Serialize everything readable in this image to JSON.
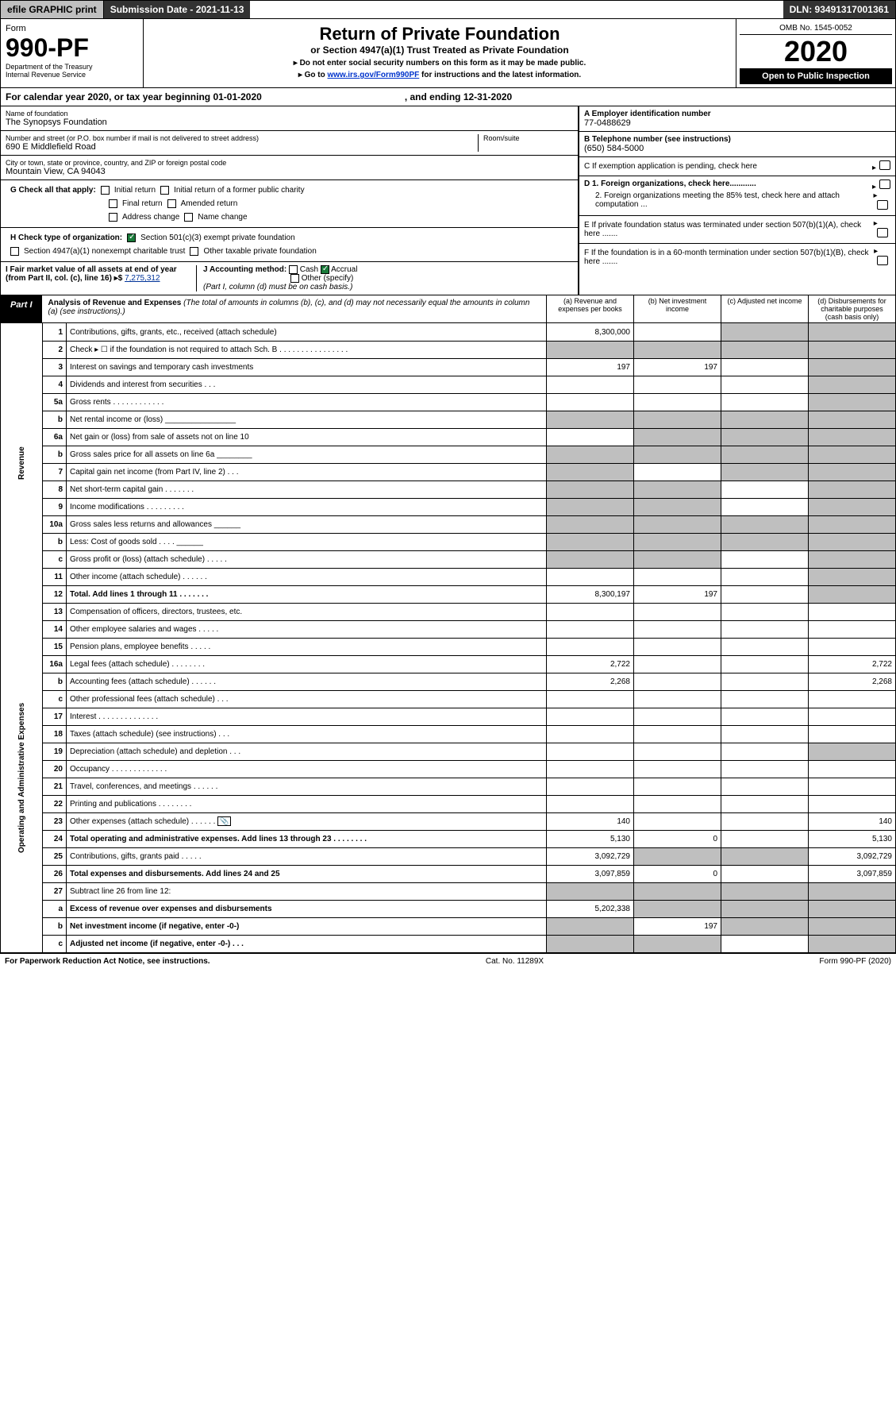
{
  "topbar": {
    "efile": "efile GRAPHIC print",
    "sub_lbl": "Submission Date - 2021-11-13",
    "dln": "DLN: 93491317001361"
  },
  "header": {
    "form": "Form",
    "num": "990-PF",
    "dept": "Department of the Treasury",
    "irs": "Internal Revenue Service",
    "title": "Return of Private Foundation",
    "subtitle": "or Section 4947(a)(1) Trust Treated as Private Foundation",
    "note1": "▸ Do not enter social security numbers on this form as it may be made public.",
    "note2_pre": "▸ Go to ",
    "note2_link": "www.irs.gov/Form990PF",
    "note2_post": " for instructions and the latest information.",
    "omb": "OMB No. 1545-0052",
    "year": "2020",
    "open": "Open to Public Inspection"
  },
  "cal": {
    "text": "For calendar year 2020, or tax year beginning 01-01-2020",
    "end": ", and ending 12-31-2020"
  },
  "entity": {
    "name_lbl": "Name of foundation",
    "name": "The Synopsys Foundation",
    "addr_lbl": "Number and street (or P.O. box number if mail is not delivered to street address)",
    "addr": "690 E Middlefield Road",
    "room_lbl": "Room/suite",
    "city_lbl": "City or town, state or province, country, and ZIP or foreign postal code",
    "city": "Mountain View, CA  94043",
    "ein_lbl": "A Employer identification number",
    "ein": "77-0488629",
    "tel_lbl": "B Telephone number (see instructions)",
    "tel": "(650) 584-5000",
    "c": "C If exemption application is pending, check here",
    "d1": "D 1. Foreign organizations, check here............",
    "d2": "2. Foreign organizations meeting the 85% test, check here and attach computation ...",
    "e": "E If private foundation status was terminated under section 507(b)(1)(A), check here .......",
    "f": "F If the foundation is in a 60-month termination under section 507(b)(1)(B), check here .......",
    "g_lbl": "G Check all that apply:",
    "g_opts": [
      "Initial return",
      "Initial return of a former public charity",
      "Final return",
      "Amended return",
      "Address change",
      "Name change"
    ],
    "h_lbl": "H Check type of organization:",
    "h1": "Section 501(c)(3) exempt private foundation",
    "h2": "Section 4947(a)(1) nonexempt charitable trust",
    "h3": "Other taxable private foundation",
    "i_lbl": "I Fair market value of all assets at end of year (from Part II, col. (c), line 16) ▸$ ",
    "i_val": "7,275,312",
    "j_lbl": "J Accounting method:",
    "j_cash": "Cash",
    "j_acc": "Accrual",
    "j_other": "Other (specify)",
    "j_note": "(Part I, column (d) must be on cash basis.)"
  },
  "part1": {
    "tag": "Part I",
    "title": "Analysis of Revenue and Expenses",
    "title_note": " (The total of amounts in columns (b), (c), and (d) may not necessarily equal the amounts in column (a) (see instructions).)",
    "col_a": "(a) Revenue and expenses per books",
    "col_b": "(b) Net investment income",
    "col_c": "(c) Adjusted net income",
    "col_d": "(d) Disbursements for charitable purposes (cash basis only)"
  },
  "side": {
    "rev": "Revenue",
    "exp": "Operating and Administrative Expenses"
  },
  "rows": [
    {
      "n": "1",
      "d": "Contributions, gifts, grants, etc., received (attach schedule)",
      "a": "8,300,000",
      "b": "",
      "c": "g",
      "dd": "g"
    },
    {
      "n": "2",
      "d": "Check ▸ ☐ if the foundation is not required to attach Sch. B   .  .  .  .  .  .  .  .  .  .  .  .  .  .  .  .",
      "a": "g",
      "b": "g",
      "c": "g",
      "dd": "g"
    },
    {
      "n": "3",
      "d": "Interest on savings and temporary cash investments",
      "a": "197",
      "b": "197",
      "c": "",
      "dd": "g"
    },
    {
      "n": "4",
      "d": "Dividends and interest from securities   .  .  .",
      "a": "",
      "b": "",
      "c": "",
      "dd": "g"
    },
    {
      "n": "5a",
      "d": "Gross rents   .  .  .  .  .  .  .  .  .  .  .  .",
      "a": "",
      "b": "",
      "c": "",
      "dd": "g"
    },
    {
      "n": "b",
      "d": "Net rental income or (loss)  ________________",
      "a": "g",
      "b": "g",
      "c": "g",
      "dd": "g"
    },
    {
      "n": "6a",
      "d": "Net gain or (loss) from sale of assets not on line 10",
      "a": "",
      "b": "g",
      "c": "g",
      "dd": "g"
    },
    {
      "n": "b",
      "d": "Gross sales price for all assets on line 6a ________",
      "a": "g",
      "b": "g",
      "c": "g",
      "dd": "g"
    },
    {
      "n": "7",
      "d": "Capital gain net income (from Part IV, line 2)   .  .  .",
      "a": "g",
      "b": "",
      "c": "g",
      "dd": "g"
    },
    {
      "n": "8",
      "d": "Net short-term capital gain   .  .  .  .  .  .  .",
      "a": "g",
      "b": "g",
      "c": "",
      "dd": "g"
    },
    {
      "n": "9",
      "d": "Income modifications   .  .  .  .  .  .  .  .  .",
      "a": "g",
      "b": "g",
      "c": "",
      "dd": "g"
    },
    {
      "n": "10a",
      "d": "Gross sales less returns and allowances   ______",
      "a": "g",
      "b": "g",
      "c": "g",
      "dd": "g"
    },
    {
      "n": "b",
      "d": "Less: Cost of goods sold   .  .  .  .   ______",
      "a": "g",
      "b": "g",
      "c": "g",
      "dd": "g"
    },
    {
      "n": "c",
      "d": "Gross profit or (loss) (attach schedule)   .  .  .  .  .",
      "a": "g",
      "b": "g",
      "c": "",
      "dd": "g"
    },
    {
      "n": "11",
      "d": "Other income (attach schedule)   .  .  .  .  .  .",
      "a": "",
      "b": "",
      "c": "",
      "dd": "g"
    },
    {
      "n": "12",
      "d": "Total. Add lines 1 through 11   .  .  .  .  .  .  .",
      "a": "8,300,197",
      "b": "197",
      "c": "",
      "dd": "g",
      "bold": true
    },
    {
      "n": "13",
      "d": "Compensation of officers, directors, trustees, etc.",
      "a": "",
      "b": "",
      "c": "",
      "dd": ""
    },
    {
      "n": "14",
      "d": "Other employee salaries and wages   .  .  .  .  .",
      "a": "",
      "b": "",
      "c": "",
      "dd": ""
    },
    {
      "n": "15",
      "d": "Pension plans, employee benefits   .  .  .  .  .",
      "a": "",
      "b": "",
      "c": "",
      "dd": ""
    },
    {
      "n": "16a",
      "d": "Legal fees (attach schedule)  .  .  .  .  .  .  .  .",
      "a": "2,722",
      "b": "",
      "c": "",
      "dd": "2,722"
    },
    {
      "n": "b",
      "d": "Accounting fees (attach schedule)  .  .  .  .  .  .",
      "a": "2,268",
      "b": "",
      "c": "",
      "dd": "2,268"
    },
    {
      "n": "c",
      "d": "Other professional fees (attach schedule)   .  .  .",
      "a": "",
      "b": "",
      "c": "",
      "dd": ""
    },
    {
      "n": "17",
      "d": "Interest  .  .  .  .  .  .  .  .  .  .  .  .  .  .",
      "a": "",
      "b": "",
      "c": "",
      "dd": ""
    },
    {
      "n": "18",
      "d": "Taxes (attach schedule) (see instructions)   .  .  .",
      "a": "",
      "b": "",
      "c": "",
      "dd": ""
    },
    {
      "n": "19",
      "d": "Depreciation (attach schedule) and depletion   .  .  .",
      "a": "",
      "b": "",
      "c": "",
      "dd": "g"
    },
    {
      "n": "20",
      "d": "Occupancy  .  .  .  .  .  .  .  .  .  .  .  .  .",
      "a": "",
      "b": "",
      "c": "",
      "dd": ""
    },
    {
      "n": "21",
      "d": "Travel, conferences, and meetings  .  .  .  .  .  .",
      "a": "",
      "b": "",
      "c": "",
      "dd": ""
    },
    {
      "n": "22",
      "d": "Printing and publications  .  .  .  .  .  .  .  .",
      "a": "",
      "b": "",
      "c": "",
      "dd": ""
    },
    {
      "n": "23",
      "d": "Other expenses (attach schedule)  .  .  .  .  .  .",
      "a": "140",
      "b": "",
      "c": "",
      "dd": "140",
      "icon": true
    },
    {
      "n": "24",
      "d": "Total operating and administrative expenses. Add lines 13 through 23   .  .  .  .  .  .  .  .",
      "a": "5,130",
      "b": "0",
      "c": "",
      "dd": "5,130",
      "bold": true
    },
    {
      "n": "25",
      "d": "Contributions, gifts, grants paid   .  .  .  .  .",
      "a": "3,092,729",
      "b": "g",
      "c": "g",
      "dd": "3,092,729"
    },
    {
      "n": "26",
      "d": "Total expenses and disbursements. Add lines 24 and 25",
      "a": "3,097,859",
      "b": "0",
      "c": "",
      "dd": "3,097,859",
      "bold": true
    },
    {
      "n": "27",
      "d": "Subtract line 26 from line 12:",
      "a": "g",
      "b": "g",
      "c": "g",
      "dd": "g"
    },
    {
      "n": "a",
      "d": "Excess of revenue over expenses and disbursements",
      "a": "5,202,338",
      "b": "g",
      "c": "g",
      "dd": "g",
      "bold": true
    },
    {
      "n": "b",
      "d": "Net investment income (if negative, enter -0-)",
      "a": "g",
      "b": "197",
      "c": "g",
      "dd": "g",
      "bold": true
    },
    {
      "n": "c",
      "d": "Adjusted net income (if negative, enter -0-)   .  .  .",
      "a": "g",
      "b": "g",
      "c": "",
      "dd": "g",
      "bold": true
    }
  ],
  "footer": {
    "left": "For Paperwork Reduction Act Notice, see instructions.",
    "mid": "Cat. No. 11289X",
    "right": "Form 990-PF (2020)"
  }
}
